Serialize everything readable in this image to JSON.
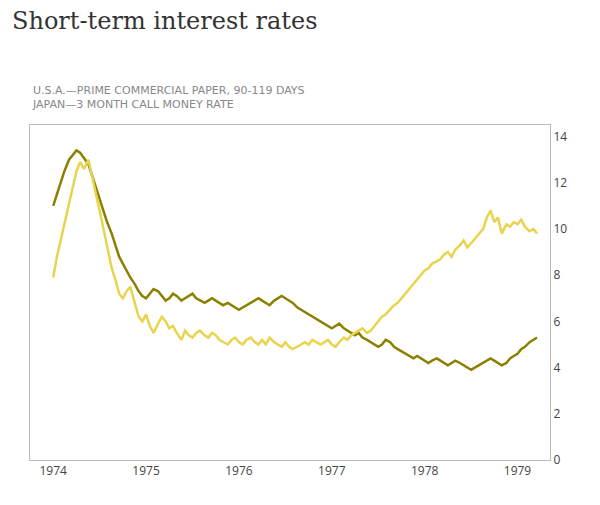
{
  "chart_data": {
    "type": "line",
    "title": "Short-term interest rates",
    "subtitle": [
      "U.S.A.—PRIME COMMERCIAL PAPER, 90-119 DAYS",
      "JAPAN—3 MONTH CALL MONEY RATE"
    ],
    "xlim": [
      1973.75,
      1979.35
    ],
    "xticks": [
      1974,
      1975,
      1976,
      1977,
      1978,
      1979
    ],
    "ylim": [
      0,
      14.5
    ],
    "yticks": [
      0,
      2,
      4,
      6,
      8,
      10,
      12,
      14
    ],
    "grid": false,
    "series": [
      {
        "color": "#8b8000",
        "x": [
          1974.0,
          1974.04,
          1974.08,
          1974.12,
          1974.17,
          1974.21,
          1974.25,
          1974.29,
          1974.33,
          1974.38,
          1974.42,
          1974.46,
          1974.5,
          1974.54,
          1974.58,
          1974.63,
          1974.67,
          1974.71,
          1974.75,
          1974.79,
          1974.83,
          1974.88,
          1974.92,
          1974.96,
          1975.0,
          1975.04,
          1975.08,
          1975.13,
          1975.17,
          1975.21,
          1975.25,
          1975.29,
          1975.33,
          1975.38,
          1975.42,
          1975.46,
          1975.5,
          1975.54,
          1975.58,
          1975.63,
          1975.67,
          1975.71,
          1975.75,
          1975.79,
          1975.83,
          1975.88,
          1975.92,
          1975.96,
          1976.0,
          1976.04,
          1976.08,
          1976.13,
          1976.17,
          1976.21,
          1976.25,
          1976.29,
          1976.33,
          1976.38,
          1976.42,
          1976.46,
          1976.5,
          1976.54,
          1976.58,
          1976.63,
          1976.67,
          1976.71,
          1976.75,
          1976.79,
          1976.83,
          1976.88,
          1976.92,
          1976.96,
          1977.0,
          1977.04,
          1977.08,
          1977.13,
          1977.17,
          1977.21,
          1977.25,
          1977.29,
          1977.33,
          1977.38,
          1977.42,
          1977.46,
          1977.5,
          1977.54,
          1977.58,
          1977.63,
          1977.67,
          1977.71,
          1977.75,
          1977.79,
          1977.83,
          1977.88,
          1977.92,
          1977.96,
          1978.0,
          1978.04,
          1978.08,
          1978.13,
          1978.17,
          1978.21,
          1978.25,
          1978.29,
          1978.33,
          1978.38,
          1978.42,
          1978.46,
          1978.5,
          1978.54,
          1978.58,
          1978.63,
          1978.67,
          1978.71,
          1978.75,
          1978.79,
          1978.83,
          1978.88,
          1978.92,
          1978.96,
          1979.0,
          1979.04,
          1979.08,
          1979.13,
          1979.17,
          1979.21
        ],
        "values": [
          11.0,
          11.5,
          12.0,
          12.5,
          13.0,
          13.2,
          13.4,
          13.3,
          13.1,
          12.8,
          12.3,
          11.8,
          11.3,
          10.8,
          10.3,
          9.8,
          9.3,
          8.8,
          8.5,
          8.2,
          7.9,
          7.6,
          7.3,
          7.1,
          7.0,
          7.2,
          7.4,
          7.3,
          7.1,
          6.9,
          7.0,
          7.2,
          7.1,
          6.9,
          7.0,
          7.1,
          7.2,
          7.0,
          6.9,
          6.8,
          6.9,
          7.0,
          6.9,
          6.8,
          6.7,
          6.8,
          6.7,
          6.6,
          6.5,
          6.6,
          6.7,
          6.8,
          6.9,
          7.0,
          6.9,
          6.8,
          6.7,
          6.9,
          7.0,
          7.1,
          7.0,
          6.9,
          6.8,
          6.6,
          6.5,
          6.4,
          6.3,
          6.2,
          6.1,
          6.0,
          5.9,
          5.8,
          5.7,
          5.8,
          5.9,
          5.7,
          5.6,
          5.5,
          5.4,
          5.5,
          5.3,
          5.2,
          5.1,
          5.0,
          4.9,
          5.0,
          5.2,
          5.1,
          4.9,
          4.8,
          4.7,
          4.6,
          4.5,
          4.4,
          4.5,
          4.4,
          4.3,
          4.2,
          4.3,
          4.4,
          4.3,
          4.2,
          4.1,
          4.2,
          4.3,
          4.2,
          4.1,
          4.0,
          3.9,
          4.0,
          4.1,
          4.2,
          4.3,
          4.4,
          4.3,
          4.2,
          4.1,
          4.2,
          4.4,
          4.5,
          4.6,
          4.8,
          4.9,
          5.1,
          5.2,
          5.3
        ]
      },
      {
        "color": "#e8d44d",
        "x": [
          1974.0,
          1974.04,
          1974.08,
          1974.12,
          1974.17,
          1974.21,
          1974.25,
          1974.29,
          1974.33,
          1974.38,
          1974.42,
          1974.46,
          1974.5,
          1974.54,
          1974.58,
          1974.63,
          1974.67,
          1974.71,
          1974.75,
          1974.79,
          1974.83,
          1974.88,
          1974.92,
          1974.96,
          1975.0,
          1975.04,
          1975.08,
          1975.13,
          1975.17,
          1975.21,
          1975.25,
          1975.29,
          1975.33,
          1975.38,
          1975.42,
          1975.46,
          1975.5,
          1975.54,
          1975.58,
          1975.63,
          1975.67,
          1975.71,
          1975.75,
          1975.79,
          1975.83,
          1975.88,
          1975.92,
          1975.96,
          1976.0,
          1976.04,
          1976.08,
          1976.13,
          1976.17,
          1976.21,
          1976.25,
          1976.29,
          1976.33,
          1976.38,
          1976.42,
          1976.46,
          1976.5,
          1976.54,
          1976.58,
          1976.63,
          1976.67,
          1976.71,
          1976.75,
          1976.79,
          1976.83,
          1976.88,
          1976.92,
          1976.96,
          1977.0,
          1977.04,
          1977.08,
          1977.13,
          1977.17,
          1977.21,
          1977.25,
          1977.29,
          1977.33,
          1977.38,
          1977.42,
          1977.46,
          1977.5,
          1977.54,
          1977.58,
          1977.63,
          1977.67,
          1977.71,
          1977.75,
          1977.79,
          1977.83,
          1977.88,
          1977.92,
          1977.96,
          1978.0,
          1978.04,
          1978.08,
          1978.13,
          1978.17,
          1978.21,
          1978.25,
          1978.29,
          1978.33,
          1978.38,
          1978.42,
          1978.46,
          1978.5,
          1978.54,
          1978.58,
          1978.63,
          1978.67,
          1978.71,
          1978.75,
          1978.79,
          1978.83,
          1978.88,
          1978.92,
          1978.96,
          1979.0,
          1979.04,
          1979.08,
          1979.13,
          1979.17,
          1979.21
        ],
        "values": [
          7.9,
          8.8,
          9.5,
          10.2,
          11.2,
          11.8,
          12.5,
          12.9,
          12.6,
          13.0,
          12.2,
          11.5,
          10.8,
          10.0,
          9.2,
          8.3,
          7.8,
          7.2,
          7.0,
          7.3,
          7.5,
          6.8,
          6.2,
          6.0,
          6.3,
          5.8,
          5.5,
          5.9,
          6.2,
          6.0,
          5.7,
          5.8,
          5.5,
          5.2,
          5.6,
          5.4,
          5.3,
          5.5,
          5.6,
          5.4,
          5.3,
          5.5,
          5.4,
          5.2,
          5.1,
          5.0,
          5.2,
          5.3,
          5.1,
          5.0,
          5.2,
          5.3,
          5.1,
          5.0,
          5.2,
          5.0,
          5.3,
          5.1,
          5.0,
          4.9,
          5.1,
          4.9,
          4.8,
          4.9,
          5.0,
          5.1,
          5.0,
          5.2,
          5.1,
          5.0,
          5.1,
          5.2,
          5.0,
          4.9,
          5.1,
          5.3,
          5.2,
          5.4,
          5.5,
          5.6,
          5.7,
          5.5,
          5.6,
          5.8,
          6.0,
          6.2,
          6.3,
          6.5,
          6.7,
          6.8,
          7.0,
          7.2,
          7.4,
          7.6,
          7.8,
          8.0,
          8.2,
          8.3,
          8.5,
          8.6,
          8.7,
          8.9,
          9.0,
          8.8,
          9.1,
          9.3,
          9.5,
          9.2,
          9.4,
          9.6,
          9.8,
          10.0,
          10.5,
          10.8,
          10.3,
          10.5,
          9.8,
          10.2,
          10.1,
          10.3,
          10.2,
          10.4,
          10.1,
          9.9,
          10.0,
          9.8
        ]
      }
    ]
  }
}
